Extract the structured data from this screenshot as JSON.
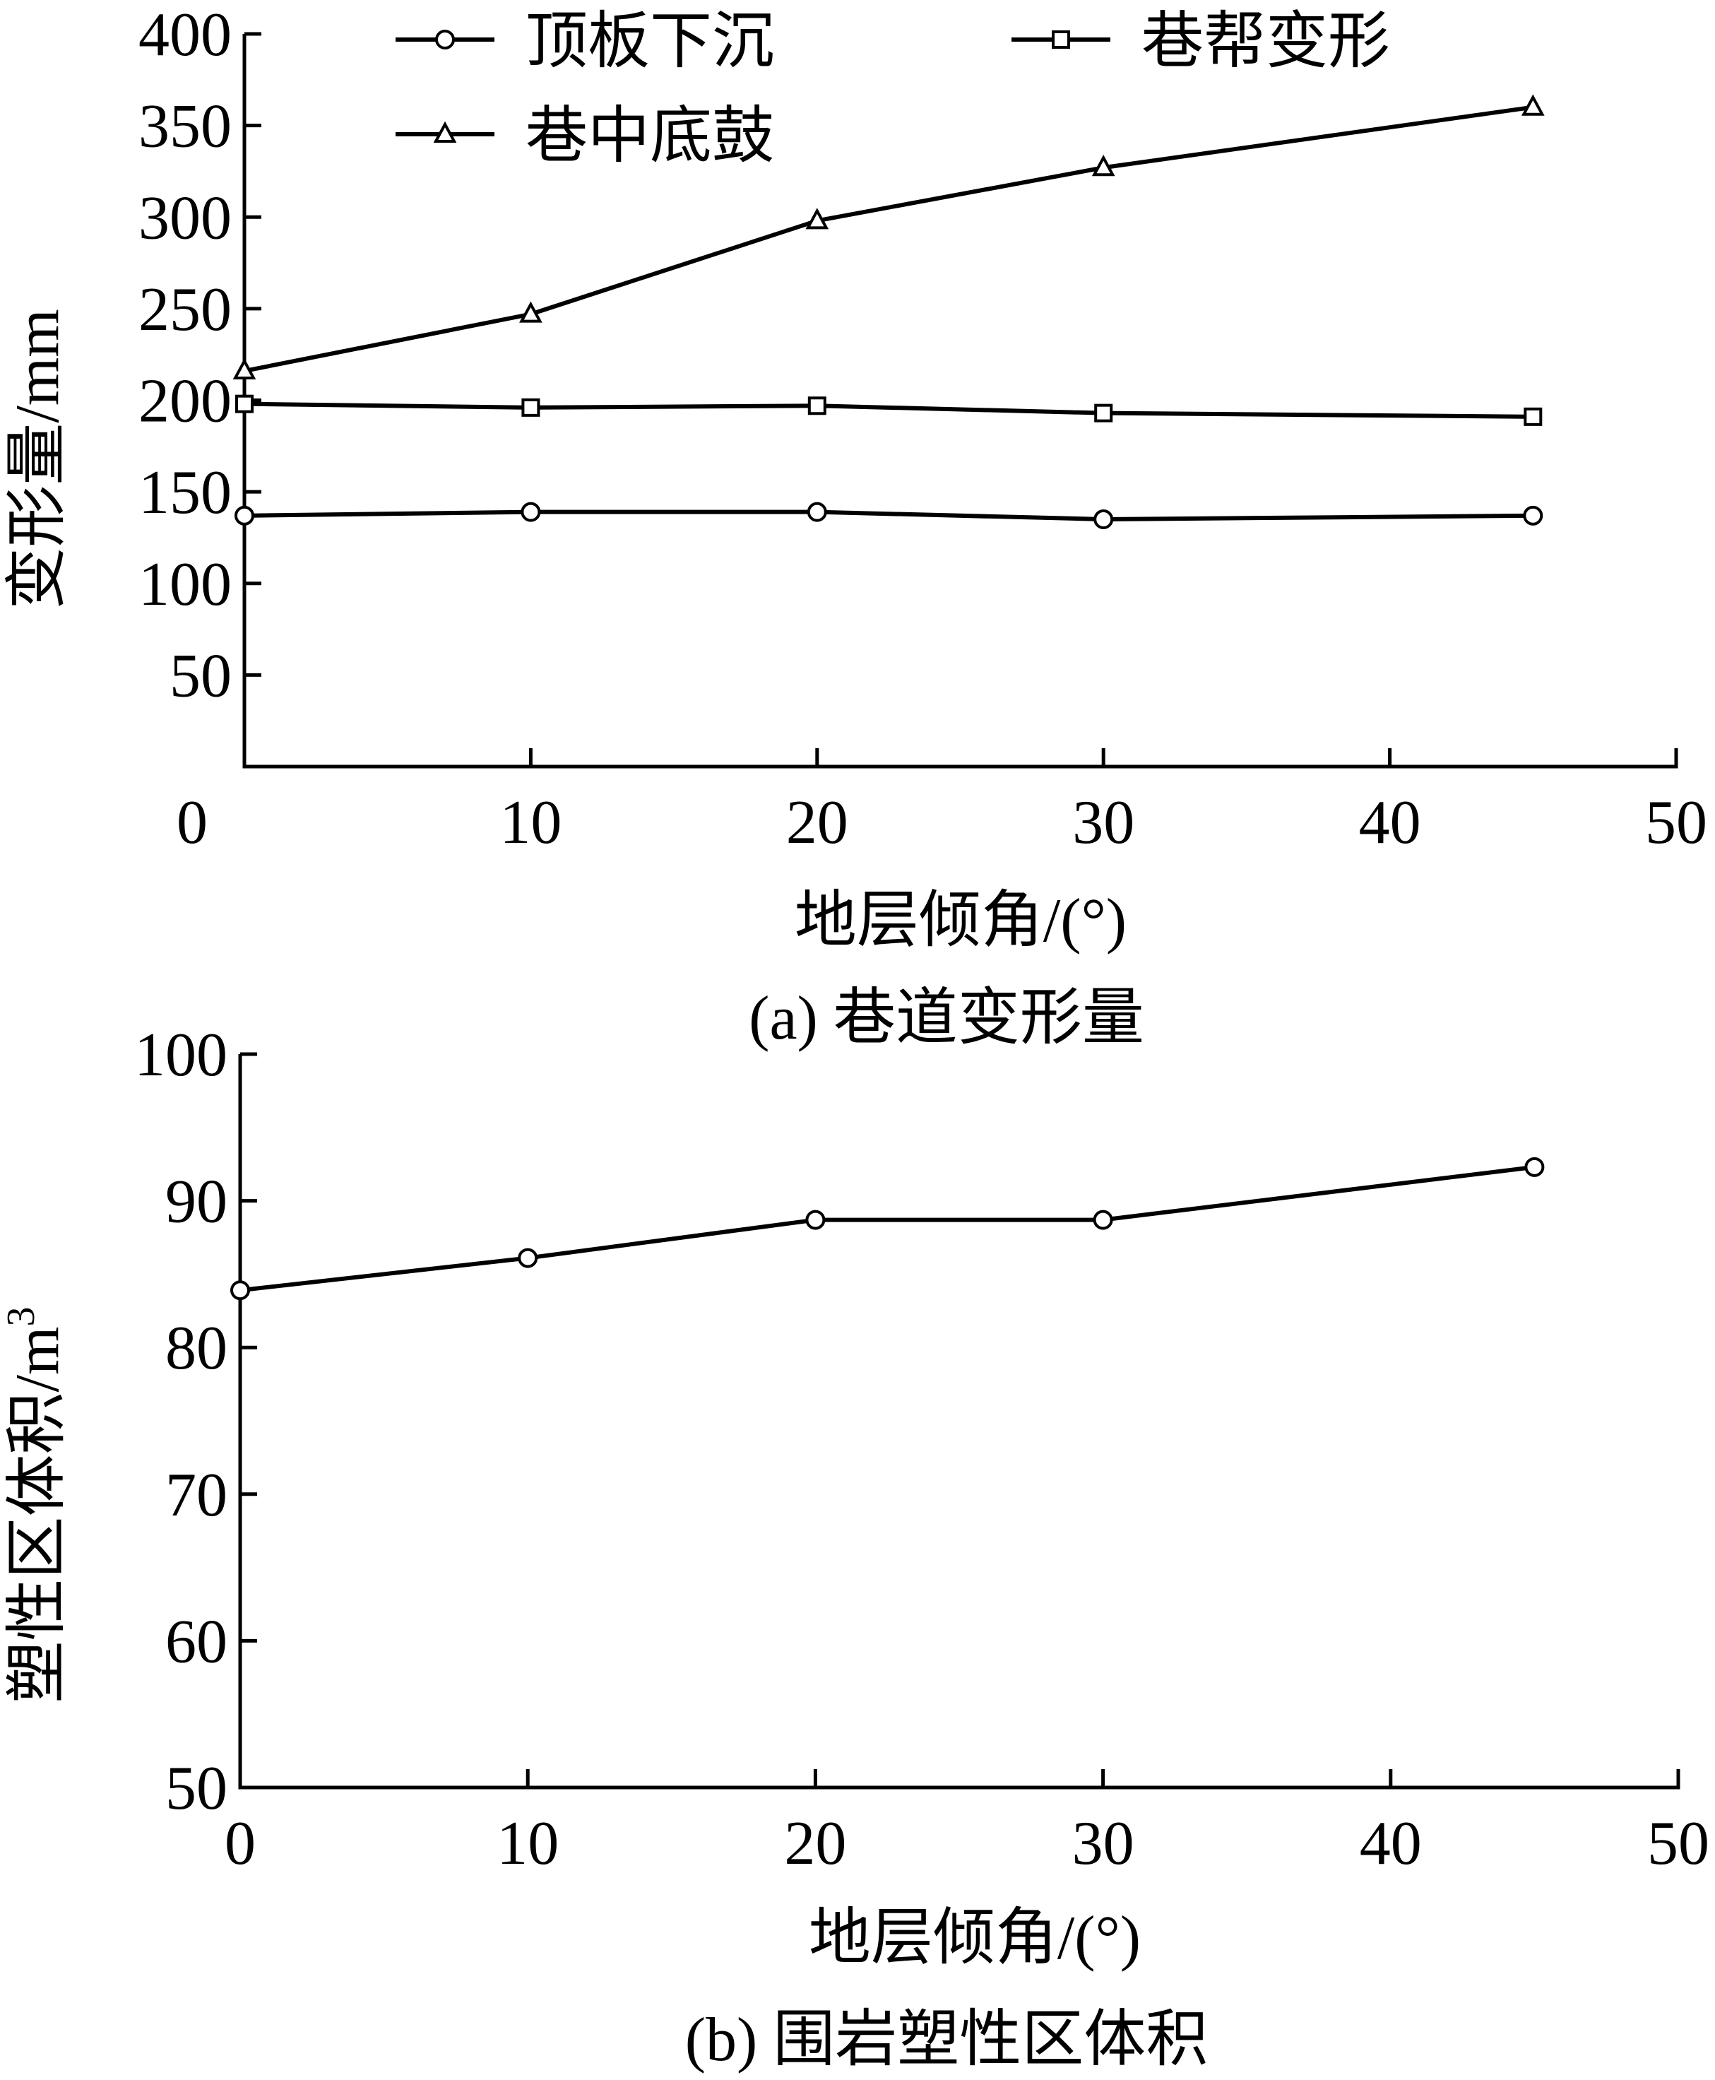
{
  "colors": {
    "ink": "#000000",
    "background": "#ffffff"
  },
  "chart_data": [
    {
      "type": "line",
      "caption": "(a)  巷道变形量",
      "xlabel": "地层倾角/(°)",
      "ylabel": "变形量/mm",
      "xlim": [
        0,
        50
      ],
      "ylim": [
        0,
        400
      ],
      "x_ticks": [
        "0",
        "10",
        "20",
        "30",
        "40",
        "50"
      ],
      "y_ticks": [
        "50",
        "100",
        "150",
        "200",
        "250",
        "300",
        "350",
        "400"
      ],
      "grid": false,
      "legend_position": "top",
      "x": [
        0,
        10,
        20,
        30,
        45
      ],
      "series": [
        {
          "name": "顶板下沉",
          "marker": "circle",
          "values": [
            137,
            139,
            139,
            135,
            137
          ]
        },
        {
          "name": "巷帮变形",
          "marker": "square",
          "values": [
            198,
            196,
            197,
            193,
            191
          ]
        },
        {
          "name": "巷中底鼓",
          "marker": "triangle",
          "values": [
            216,
            247,
            298,
            327,
            360
          ]
        }
      ]
    },
    {
      "type": "line",
      "caption": "(b)  围岩塑性区体积",
      "xlabel": "地层倾角/(°)",
      "ylabel": "塑性区体积/m",
      "ylabel_sup": "3",
      "xlim": [
        0,
        50
      ],
      "ylim": [
        50,
        100
      ],
      "x_ticks": [
        "0",
        "10",
        "20",
        "30",
        "40",
        "50"
      ],
      "y_ticks": [
        "50",
        "60",
        "70",
        "80",
        "90",
        "100"
      ],
      "grid": false,
      "x": [
        0,
        10,
        20,
        30,
        45
      ],
      "series": [
        {
          "marker": "circle",
          "values": [
            83.9,
            86.1,
            88.7,
            88.7,
            92.3
          ]
        }
      ]
    }
  ]
}
